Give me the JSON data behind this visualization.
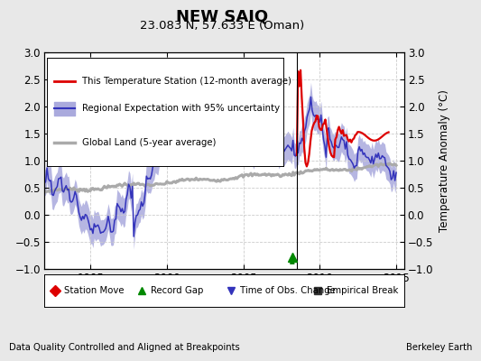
{
  "title": "NEW SAIQ",
  "subtitle": "23.083 N, 57.633 E (Oman)",
  "ylabel": "Temperature Anomaly (°C)",
  "xlabel_left": "Data Quality Controlled and Aligned at Breakpoints",
  "xlabel_right": "Berkeley Earth",
  "ylim": [
    -1.0,
    3.0
  ],
  "xlim": [
    1992.0,
    2015.5
  ],
  "yticks": [
    -1,
    -0.5,
    0,
    0.5,
    1,
    1.5,
    2,
    2.5,
    3
  ],
  "xticks": [
    1995,
    2000,
    2005,
    2010,
    2015
  ],
  "bg_color": "#e8e8e8",
  "plot_bg_color": "#ffffff",
  "regional_color": "#3333bb",
  "regional_fill_color": "#aaaadd",
  "station_color": "#dd0000",
  "global_color": "#aaaaaa",
  "record_gap_x": 2008.2,
  "vertical_line_x": 2008.5,
  "legend_entries": [
    "This Temperature Station (12-month average)",
    "Regional Expectation with 95% uncertainty",
    "Global Land (5-year average)"
  ],
  "marker_legend": [
    [
      "Station Move",
      "D",
      "#dd0000"
    ],
    [
      "Record Gap",
      "^",
      "#008800"
    ],
    [
      "Time of Obs. Change",
      "v",
      "#3333bb"
    ],
    [
      "Empirical Break",
      "s",
      "#333333"
    ]
  ]
}
